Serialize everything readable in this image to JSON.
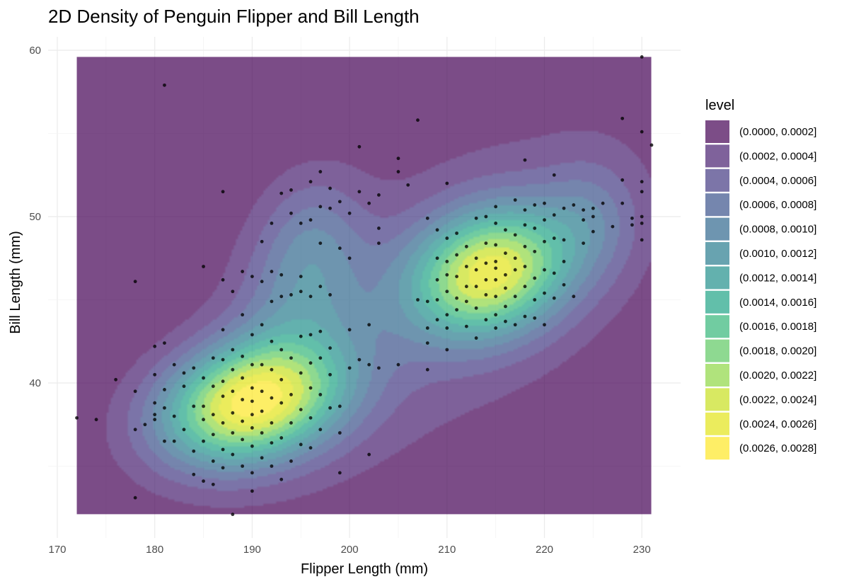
{
  "chart_data": {
    "type": "density2d_filled_with_points",
    "title": "2D Density of Penguin Flipper and Bill Length",
    "xlabel": "Flipper Length (mm)",
    "ylabel": "Bill Length (mm)",
    "xlim": [
      172,
      231
    ],
    "ylim": [
      32.1,
      59.6
    ],
    "x_ticks": [
      170,
      180,
      190,
      200,
      210,
      220,
      230
    ],
    "y_ticks": [
      40,
      50,
      60
    ],
    "grid": true,
    "legend": {
      "title": "level",
      "placement": "right",
      "levels": [
        {
          "label": "(0.0000, 0.0002]",
          "color": "#440154"
        },
        {
          "label": "(0.0002, 0.0004]",
          "color": "#481F70"
        },
        {
          "label": "(0.0004, 0.0006]",
          "color": "#443A83"
        },
        {
          "label": "(0.0006, 0.0008]",
          "color": "#3B528B"
        },
        {
          "label": "(0.0008, 0.0010]",
          "color": "#31688E"
        },
        {
          "label": "(0.0010, 0.0012]",
          "color": "#287C8E"
        },
        {
          "label": "(0.0012, 0.0014]",
          "color": "#21908C"
        },
        {
          "label": "(0.0014, 0.0016]",
          "color": "#20A486"
        },
        {
          "label": "(0.0016, 0.0018]",
          "color": "#35B779"
        },
        {
          "label": "(0.0018, 0.0020]",
          "color": "#5EC962"
        },
        {
          "label": "(0.0020, 0.0022]",
          "color": "#8FD744"
        },
        {
          "label": "(0.0022, 0.0024]",
          "color": "#C8E020"
        },
        {
          "label": "(0.0024, 0.0026]",
          "color": "#E3E418"
        },
        {
          "label": "(0.0026, 0.0028]",
          "color": "#FDE725"
        }
      ]
    },
    "fill_alpha": 0.7,
    "density_components": [
      {
        "mx": 190,
        "my": 38.8,
        "sx": 6.5,
        "sy": 2.6,
        "rho": 0.25,
        "w": 1.0
      },
      {
        "mx": 214.5,
        "my": 46.6,
        "sx": 5.8,
        "sy": 2.7,
        "rho": 0.2,
        "w": 0.86
      },
      {
        "mx": 196,
        "my": 48.5,
        "sx": 4.0,
        "sy": 3.0,
        "rho": 0.1,
        "w": 0.22
      },
      {
        "mx": 225,
        "my": 50.0,
        "sx": 3.5,
        "sy": 2.5,
        "rho": 0.0,
        "w": 0.16
      },
      {
        "mx": 195,
        "my": 44.5,
        "sx": 5.0,
        "sy": 3.0,
        "rho": 0.1,
        "w": 0.18
      },
      {
        "mx": 210,
        "my": 45.0,
        "sx": 15.0,
        "sy": 8.0,
        "rho": 0.55,
        "w": 0.13
      }
    ],
    "points": [
      [
        172,
        37.9
      ],
      [
        174,
        37.8
      ],
      [
        176,
        40.2
      ],
      [
        178,
        46.1
      ],
      [
        178,
        39.5
      ],
      [
        178,
        37.2
      ],
      [
        178,
        33.1
      ],
      [
        179,
        37.5
      ],
      [
        180,
        42.2
      ],
      [
        180,
        40.5
      ],
      [
        180,
        38.8
      ],
      [
        180,
        38.1
      ],
      [
        180,
        37.8
      ],
      [
        181,
        57.9
      ],
      [
        181,
        42.4
      ],
      [
        181,
        39.6
      ],
      [
        181,
        38.5
      ],
      [
        181,
        36.5
      ],
      [
        182,
        41.1
      ],
      [
        182,
        38.0
      ],
      [
        182,
        36.5
      ],
      [
        183,
        40.6
      ],
      [
        183,
        39.8
      ],
      [
        183,
        37.2
      ],
      [
        184,
        40.9
      ],
      [
        184,
        38.6
      ],
      [
        184,
        35.9
      ],
      [
        184,
        34.5
      ],
      [
        185,
        47.0
      ],
      [
        185,
        40.3
      ],
      [
        185,
        38.6
      ],
      [
        185,
        37.8
      ],
      [
        185,
        36.5
      ],
      [
        185,
        34.1
      ],
      [
        186,
        41.5
      ],
      [
        186,
        39.8
      ],
      [
        186,
        38.1
      ],
      [
        186,
        36.9
      ],
      [
        186,
        35.3
      ],
      [
        186,
        33.9
      ],
      [
        187,
        51.5
      ],
      [
        187,
        46.2
      ],
      [
        187,
        43.2
      ],
      [
        187,
        41.4
      ],
      [
        187,
        40.1
      ],
      [
        187,
        39.2
      ],
      [
        187,
        37.6
      ],
      [
        187,
        36.0
      ],
      [
        187,
        34.9
      ],
      [
        188,
        45.5
      ],
      [
        188,
        42.0
      ],
      [
        188,
        40.8
      ],
      [
        188,
        39.5
      ],
      [
        188,
        38.2
      ],
      [
        188,
        37.0
      ],
      [
        188,
        35.7
      ],
      [
        188,
        32.1
      ],
      [
        189,
        46.7
      ],
      [
        189,
        44.1
      ],
      [
        189,
        41.6
      ],
      [
        189,
        40.3
      ],
      [
        189,
        39.0
      ],
      [
        189,
        37.7
      ],
      [
        189,
        36.6
      ],
      [
        189,
        35.0
      ],
      [
        190,
        46.4
      ],
      [
        190,
        42.9
      ],
      [
        190,
        41.1
      ],
      [
        190,
        39.7
      ],
      [
        190,
        38.9
      ],
      [
        190,
        38.1
      ],
      [
        190,
        37.3
      ],
      [
        190,
        36.2
      ],
      [
        190,
        34.6
      ],
      [
        190,
        33.5
      ],
      [
        191,
        48.5
      ],
      [
        191,
        46.1
      ],
      [
        191,
        43.5
      ],
      [
        191,
        41.1
      ],
      [
        191,
        39.5
      ],
      [
        191,
        38.3
      ],
      [
        191,
        37.0
      ],
      [
        191,
        35.5
      ],
      [
        192,
        49.6
      ],
      [
        192,
        46.7
      ],
      [
        192,
        44.9
      ],
      [
        192,
        42.5
      ],
      [
        192,
        40.8
      ],
      [
        192,
        39.1
      ],
      [
        192,
        37.6
      ],
      [
        192,
        36.4
      ],
      [
        192,
        35.0
      ],
      [
        193,
        51.4
      ],
      [
        193,
        46.5
      ],
      [
        193,
        45.2
      ],
      [
        193,
        42.0
      ],
      [
        193,
        40.2
      ],
      [
        193,
        38.8
      ],
      [
        193,
        36.7
      ],
      [
        193,
        34.2
      ],
      [
        194,
        51.6
      ],
      [
        194,
        50.2
      ],
      [
        194,
        45.3
      ],
      [
        194,
        41.5
      ],
      [
        194,
        39.3
      ],
      [
        194,
        37.6
      ],
      [
        194,
        35.3
      ],
      [
        195,
        49.6
      ],
      [
        195,
        46.4
      ],
      [
        195,
        45.5
      ],
      [
        195,
        42.8
      ],
      [
        195,
        40.6
      ],
      [
        195,
        38.4
      ],
      [
        195,
        36.3
      ],
      [
        196,
        52.1
      ],
      [
        196,
        49.8
      ],
      [
        196,
        45.2
      ],
      [
        196,
        42.9
      ],
      [
        196,
        41.2
      ],
      [
        196,
        39.7
      ],
      [
        196,
        37.9
      ],
      [
        196,
        36.1
      ],
      [
        197,
        52.7
      ],
      [
        197,
        50.6
      ],
      [
        197,
        48.4
      ],
      [
        197,
        45.8
      ],
      [
        197,
        43.1
      ],
      [
        197,
        41.5
      ],
      [
        197,
        39.3
      ],
      [
        197,
        37.2
      ],
      [
        198,
        51.7
      ],
      [
        198,
        50.5
      ],
      [
        198,
        45.3
      ],
      [
        198,
        42.1
      ],
      [
        198,
        40.5
      ],
      [
        198,
        38.5
      ],
      [
        199,
        50.9
      ],
      [
        199,
        48.1
      ],
      [
        199,
        38.6
      ],
      [
        199,
        37.0
      ],
      [
        199,
        34.6
      ],
      [
        200,
        50.2
      ],
      [
        200,
        47.5
      ],
      [
        200,
        43.2
      ],
      [
        200,
        40.9
      ],
      [
        201,
        54.2
      ],
      [
        201,
        51.5
      ],
      [
        201,
        41.4
      ],
      [
        202,
        50.8
      ],
      [
        202,
        43.5
      ],
      [
        202,
        41.1
      ],
      [
        202,
        35.7
      ],
      [
        203,
        51.3
      ],
      [
        203,
        49.3
      ],
      [
        203,
        48.4
      ],
      [
        203,
        40.9
      ],
      [
        205,
        53.5
      ],
      [
        205,
        52.7
      ],
      [
        205,
        41.1
      ],
      [
        206,
        51.9
      ],
      [
        207,
        55.8
      ],
      [
        207,
        45.0
      ],
      [
        208,
        49.9
      ],
      [
        208,
        44.9
      ],
      [
        208,
        43.3
      ],
      [
        208,
        42.4
      ],
      [
        208,
        40.8
      ],
      [
        209,
        49.2
      ],
      [
        209,
        47.5
      ],
      [
        209,
        46.2
      ],
      [
        209,
        45.0
      ],
      [
        209,
        43.8
      ],
      [
        210,
        52.0
      ],
      [
        210,
        48.7
      ],
      [
        210,
        47.3
      ],
      [
        210,
        46.5
      ],
      [
        210,
        45.5
      ],
      [
        210,
        44.1
      ],
      [
        210,
        43.3
      ],
      [
        210,
        42.0
      ],
      [
        211,
        49.0
      ],
      [
        211,
        47.7
      ],
      [
        211,
        46.4
      ],
      [
        211,
        45.1
      ],
      [
        211,
        44.4
      ],
      [
        212,
        48.2
      ],
      [
        212,
        47.0
      ],
      [
        212,
        45.8
      ],
      [
        212,
        44.9
      ],
      [
        212,
        43.4
      ],
      [
        213,
        49.9
      ],
      [
        213,
        47.5
      ],
      [
        213,
        46.8
      ],
      [
        213,
        45.8
      ],
      [
        213,
        44.5
      ],
      [
        213,
        42.7
      ],
      [
        214,
        50.0
      ],
      [
        214,
        48.4
      ],
      [
        214,
        47.2
      ],
      [
        214,
        46.2
      ],
      [
        214,
        45.3
      ],
      [
        214,
        43.8
      ],
      [
        215,
        50.6
      ],
      [
        215,
        49.6
      ],
      [
        215,
        48.3
      ],
      [
        215,
        47.3
      ],
      [
        215,
        46.9
      ],
      [
        215,
        46.2
      ],
      [
        215,
        45.2
      ],
      [
        215,
        44.1
      ],
      [
        215,
        43.3
      ],
      [
        216,
        49.2
      ],
      [
        216,
        47.8
      ],
      [
        216,
        46.5
      ],
      [
        216,
        45.7
      ],
      [
        216,
        44.6
      ],
      [
        216,
        43.7
      ],
      [
        217,
        51.0
      ],
      [
        217,
        48.9
      ],
      [
        217,
        47.5
      ],
      [
        217,
        46.8
      ],
      [
        217,
        45.2
      ],
      [
        217,
        43.5
      ],
      [
        218,
        53.4
      ],
      [
        218,
        50.4
      ],
      [
        218,
        49.5
      ],
      [
        218,
        48.2
      ],
      [
        218,
        47.0
      ],
      [
        218,
        45.8
      ],
      [
        218,
        44.0
      ],
      [
        219,
        50.7
      ],
      [
        219,
        49.3
      ],
      [
        219,
        47.9
      ],
      [
        219,
        46.3
      ],
      [
        219,
        45.0
      ],
      [
        219,
        43.9
      ],
      [
        220,
        50.8
      ],
      [
        220,
        49.8
      ],
      [
        220,
        48.5
      ],
      [
        220,
        46.8
      ],
      [
        220,
        45.4
      ],
      [
        220,
        43.5
      ],
      [
        221,
        52.5
      ],
      [
        221,
        50.1
      ],
      [
        221,
        48.7
      ],
      [
        221,
        46.6
      ],
      [
        221,
        45.1
      ],
      [
        222,
        50.5
      ],
      [
        222,
        48.6
      ],
      [
        222,
        47.3
      ],
      [
        222,
        45.9
      ],
      [
        223,
        50.7
      ],
      [
        223,
        45.2
      ],
      [
        224,
        50.4
      ],
      [
        224,
        49.8
      ],
      [
        224,
        48.4
      ],
      [
        225,
        50.5
      ],
      [
        225,
        50.0
      ],
      [
        225,
        49.1
      ],
      [
        226,
        50.8
      ],
      [
        227,
        49.4
      ],
      [
        228,
        55.9
      ],
      [
        228,
        52.2
      ],
      [
        228,
        50.8
      ],
      [
        229,
        49.9
      ],
      [
        229,
        49.5
      ],
      [
        230,
        59.6
      ],
      [
        230,
        55.1
      ],
      [
        230,
        52.1
      ],
      [
        230,
        51.5
      ],
      [
        230,
        50.0
      ],
      [
        230,
        49.6
      ],
      [
        230,
        48.6
      ],
      [
        231,
        54.3
      ]
    ]
  }
}
